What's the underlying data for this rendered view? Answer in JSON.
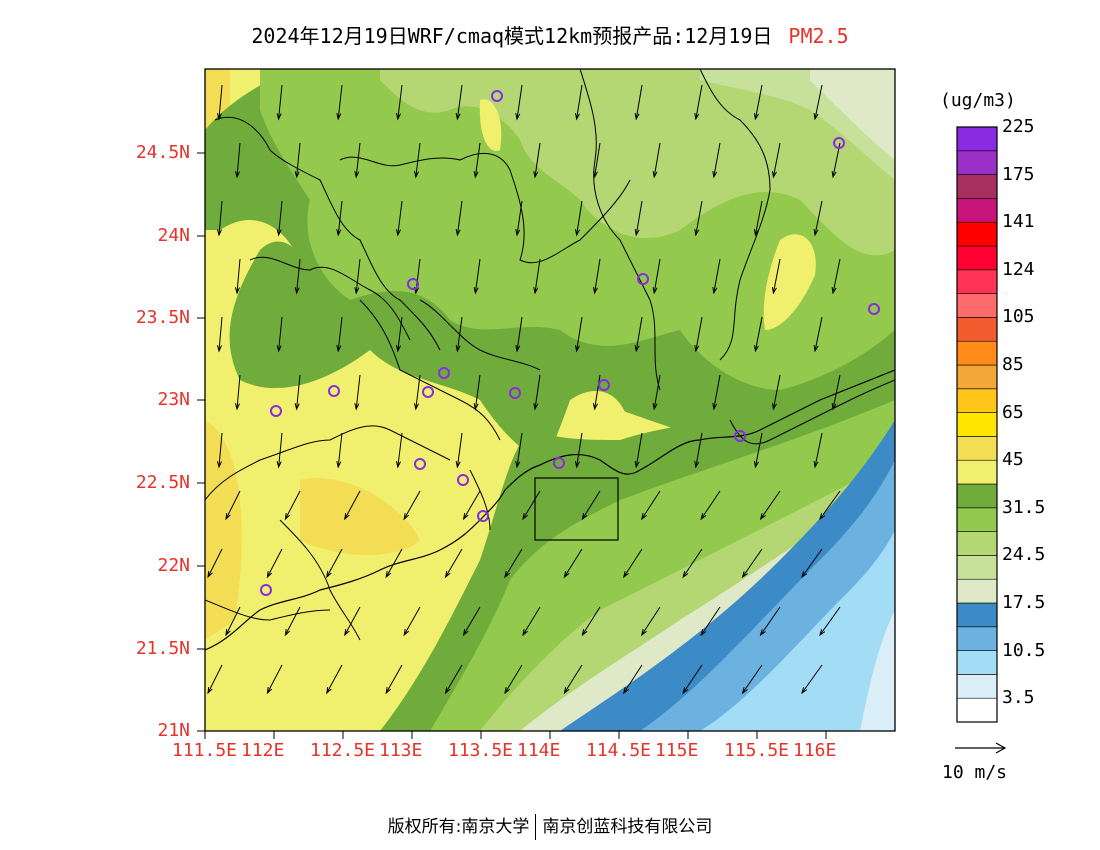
{
  "title": {
    "text": "2024年12月19日WRF/cmaq模式12km预报产品:12月19日",
    "variable": "PM2.5"
  },
  "colorbar": {
    "unit": "(ug/m3)",
    "colors": [
      "#ffffff",
      "#daeef8",
      "#a3dcf5",
      "#6bb2e0",
      "#3d8bc6",
      "#dfe9c7",
      "#c7e09a",
      "#b4d774",
      "#93c94c",
      "#6fac3c",
      "#f0f06e",
      "#f3dd55",
      "#ffe600",
      "#ffc51a",
      "#f5a638",
      "#ff8c1a",
      "#f25c2e",
      "#ff6a6a",
      "#ff3355",
      "#ff0033",
      "#ff0000",
      "#c8147a",
      "#a83060",
      "#9b30c8",
      "#8a2be2"
    ],
    "labels": [
      "3.5",
      "10.5",
      "17.5",
      "24.5",
      "31.5",
      "45",
      "65",
      "85",
      "105",
      "124",
      "141",
      "175",
      "225"
    ]
  },
  "axes": {
    "lat_ticks": [
      "24.5N",
      "24N",
      "23.5N",
      "23N",
      "22.5N",
      "22N",
      "21.5N",
      "21N"
    ],
    "lon_ticks": [
      "111.5E",
      "112E",
      "112.5E",
      "113E",
      "113.5E",
      "114E",
      "114.5E",
      "115E",
      "115.5E",
      "116E"
    ]
  },
  "wind_reference": {
    "label": "10 m/s"
  },
  "footer": {
    "left": "版权所有:南京大学",
    "right": "南京创蓝科技有限公司"
  }
}
